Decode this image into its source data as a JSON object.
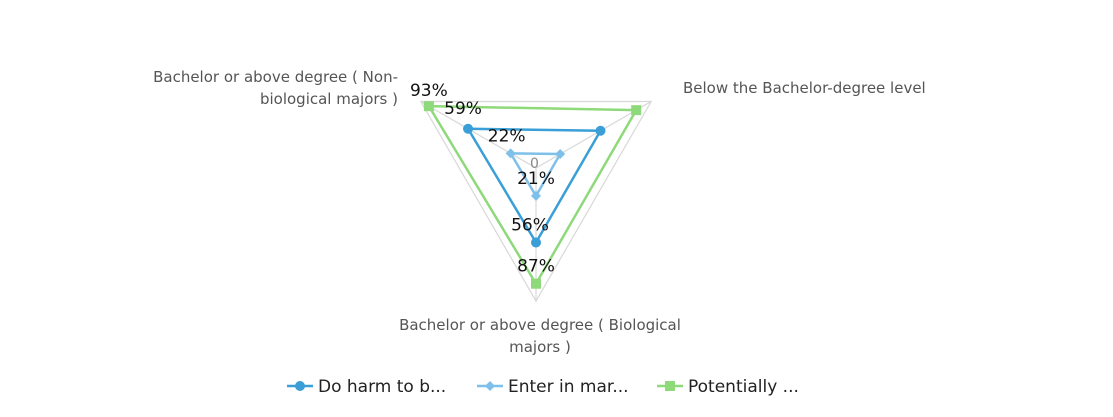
{
  "chart_data": {
    "type": "radar",
    "axes": [
      {
        "label_lines": [
          "Bachelor or above degree ( Non-",
          "biological majors )"
        ]
      },
      {
        "label_lines": [
          "Below the Bachelor-degree level"
        ]
      },
      {
        "label_lines": [
          "Bachelor or above degree ( Biological",
          "majors )"
        ]
      }
    ],
    "center_label": "0",
    "rmax": 100,
    "series": [
      {
        "name": "Do harm to b...",
        "values": [
          59,
          56,
          56
        ],
        "labels": [
          "59%",
          "",
          "56%"
        ],
        "color": "#3a9fd6",
        "marker": "circle"
      },
      {
        "name": "Enter in mar...",
        "values": [
          22,
          21,
          21
        ],
        "labels": [
          "22%",
          "",
          "21%"
        ],
        "color": "#7ec0ea",
        "marker": "diamond"
      },
      {
        "name": "Potentially ...",
        "values": [
          93,
          87,
          87
        ],
        "labels": [
          "93%",
          "",
          "87%"
        ],
        "color": "#8ed97a",
        "marker": "square"
      }
    ],
    "grid_color": "#d8d8d8",
    "legend_position": "bottom"
  }
}
